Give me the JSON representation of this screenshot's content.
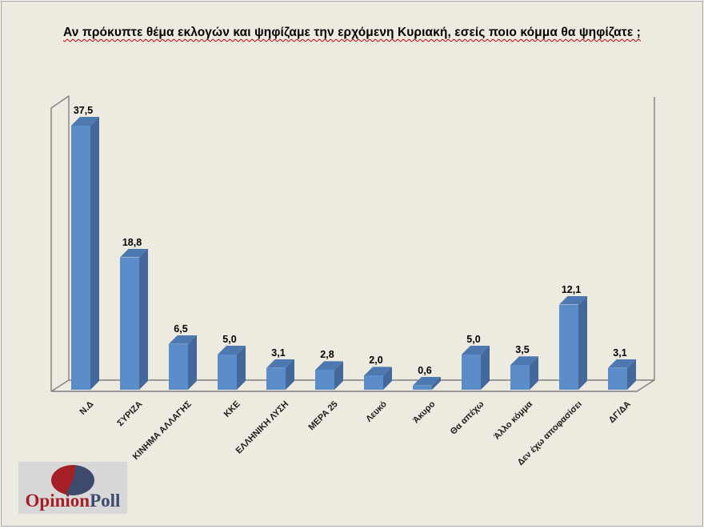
{
  "title": "Αν πρόκυπτε θέμα εκλογών και ψηφίζαμε την ερχόμενη Κυριακή, εσείς ποιο κόμμα θα ψηφίζατε ;",
  "chart_data": {
    "type": "bar",
    "style": "3d-column",
    "title": "Αν πρόκυπτε θέμα εκλογών και ψηφίζαμε την ερχόμενη Κυριακή, εσείς ποιο κόμμα θα ψηφίζατε ;",
    "categories": [
      "Ν.Δ",
      "ΣΥΡΙΖΑ",
      "ΚΙΝΗΜΑ ΑΛΛΑΓΗΣ",
      "ΚΚΕ",
      "ΕΛΛΗΝΙΚΗ ΛΥΣΗ",
      "ΜΕΡΑ 25",
      "Λευκό",
      "Άκυρο",
      "Θα απέχω",
      "Άλλο κόμμα",
      "Δεν έχω αποφασίσει",
      "ΔΓ/ΔΑ"
    ],
    "values": [
      37.5,
      18.8,
      6.5,
      5.0,
      3.1,
      2.8,
      2.0,
      0.6,
      5.0,
      3.5,
      12.1,
      3.1
    ],
    "value_labels": [
      "37,5",
      "18,8",
      "6,5",
      "5,0",
      "3,1",
      "2,8",
      "2,0",
      "0,6",
      "5,0",
      "3,5",
      "12,1",
      "3,1"
    ],
    "xlabel": "",
    "ylabel": "",
    "ylim": [
      0,
      40
    ],
    "grid": false,
    "legend": "none"
  },
  "colors": {
    "background": "#EDEBE0",
    "bar_front": "#5B8DCB",
    "bar_top": "#4D79B0",
    "bar_side": "#44689A",
    "wall_line": "#808080",
    "title_text": "#000000",
    "spellcheck_underline": "#C00000",
    "logo_box": "#D8D8D8",
    "logo_red": "#A42025",
    "logo_navy": "#3C4A6E"
  },
  "logo": {
    "name_part1": "Opinion",
    "name_part2": "Poll"
  }
}
